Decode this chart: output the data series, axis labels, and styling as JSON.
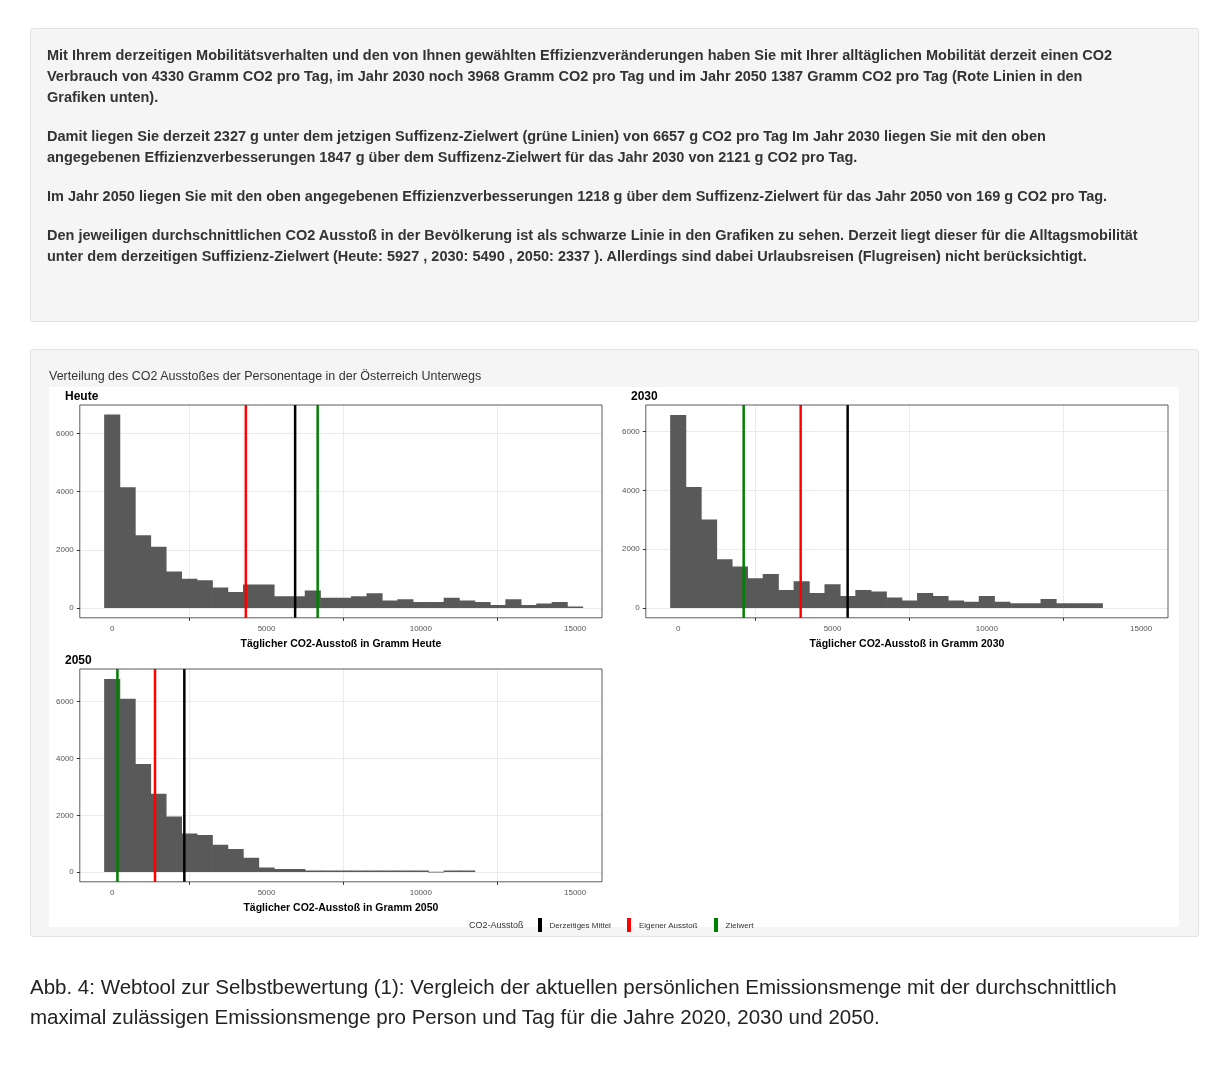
{
  "chart_data": [
    {
      "type": "other",
      "annotations": [
        "Mit Ihrem derzeitigen Mobilitätsverhalten und den von Ihnen gewählten Effizienzveränderungen haben Sie mit Ihrer alltäglichen Mobilität derzeit einen CO2 Verbrauch von 4330 Gramm CO2 pro Tag, im Jahr 2030 noch 3968 Gramm CO2 pro Tag und im Jahr 2050 1387 Gramm CO2 pro Tag (Rote Linien in den Grafiken unten).",
        "Damit liegen Sie derzeit 2327 g unter dem jetzigen Suffizenz-Zielwert (grüne Linien) von 6657 g CO2 pro Tag Im Jahr 2030 liegen Sie mit den oben angegebenen Effizienzverbesserungen 1847 g über dem Suffizenz-Zielwert für das Jahr 2030 von 2121 g CO2 pro Tag.",
        "Im Jahr 2050 liegen Sie mit den oben angegebenen Effizienzverbesserungen 1218 g über dem Suffizenz-Zielwert für das Jahr 2050 von 169 g CO2 pro Tag.",
        "Den jeweiligen durchschnittlichen CO2 Ausstoß in der Bevölkerung ist als schwarze Linie in den Grafiken zu sehen. Derzeit liegt dieser für die Alltagsmobilität unter dem derzeitigen Suffizienz-Zielwert (Heute: 5927 , 2030: 5490 , 2050: 2337 ). Allerdings sind dabei Urlaubsreisen (Flugreisen) nicht berücksichtigt."
      ]
    },
    {
      "type": "histogram",
      "title": "Heute",
      "xlabel": "Täglicher CO2-Ausstoß in Gramm Heute",
      "annotations": [
        "Verteilung des CO2 Ausstoßes der Personentage in der Österreich Unterwegs"
      ],
      "color": "#595959",
      "bins": [
        -250,
        250,
        750,
        1250,
        1750,
        2250,
        2750,
        3250,
        3750,
        4250,
        4750,
        5250,
        5750,
        6250,
        6750,
        7250,
        7750,
        8250,
        8750,
        9250,
        9750,
        10250,
        10750,
        11250,
        11750,
        12250,
        12750,
        13250,
        13750,
        14250,
        14750,
        15250
      ],
      "values": [
        6650,
        4150,
        2500,
        2100,
        1250,
        1000,
        950,
        700,
        550,
        800,
        800,
        400,
        400,
        600,
        350,
        350,
        400,
        500,
        250,
        300,
        200,
        200,
        350,
        250,
        200,
        100,
        300,
        100,
        150,
        200,
        50
      ],
      "xlim": [
        -1050,
        15870
      ],
      "xticks": [
        0,
        5000,
        10000,
        15000
      ],
      "ylim": [
        -330,
        6990
      ],
      "yticks": [
        0,
        2000,
        4000,
        6000
      ],
      "grid": true,
      "ref_lines": [
        {
          "axis": "x",
          "value": 4330,
          "color": "#ff0000"
        },
        {
          "axis": "x",
          "value": 5927,
          "color": "#000000"
        },
        {
          "axis": "x",
          "value": 6657,
          "color": "#008000"
        }
      ]
    },
    {
      "type": "histogram",
      "title": "2030",
      "xlabel": "Täglicher CO2-Ausstoß in Gramm 2030",
      "color": "#595959",
      "bins": [
        -250,
        250,
        750,
        1250,
        1750,
        2250,
        2750,
        3250,
        3750,
        4250,
        4750,
        5250,
        5750,
        6250,
        6750,
        7250,
        7750,
        8250,
        8750,
        9250,
        9750,
        10250,
        10750,
        11250,
        11750,
        12250,
        12750,
        13250,
        13750
      ],
      "values": [
        6550,
        4100,
        3000,
        1650,
        1400,
        1000,
        1150,
        600,
        900,
        500,
        800,
        400,
        600,
        550,
        350,
        250,
        500,
        400,
        250,
        200,
        400,
        200,
        150,
        150,
        300,
        150,
        150,
        150
      ],
      "xlim": [
        -1050,
        15870
      ],
      "xticks": [
        0,
        5000,
        10000,
        15000
      ],
      "ylim": [
        -330,
        6900
      ],
      "yticks": [
        0,
        2000,
        4000,
        6000
      ],
      "grid": true,
      "ref_lines": [
        {
          "axis": "x",
          "value": 2121,
          "color": "#008000"
        },
        {
          "axis": "x",
          "value": 3968,
          "color": "#ff0000"
        },
        {
          "axis": "x",
          "value": 5490,
          "color": "#000000"
        }
      ]
    },
    {
      "type": "histogram",
      "title": "2050",
      "xlabel": "Täglicher CO2-Ausstoß in Gramm 2050",
      "color": "#595959",
      "bins": [
        -250,
        250,
        750,
        1250,
        1750,
        2250,
        2750,
        3250,
        3750,
        4250,
        4750,
        5250,
        5750,
        6250,
        6750,
        7250,
        7750,
        8250,
        8750,
        9250,
        9750,
        10250,
        10750,
        11250,
        11750
      ],
      "values": [
        6800,
        6100,
        3800,
        2750,
        1950,
        1350,
        1300,
        950,
        800,
        500,
        150,
        100,
        100,
        50,
        50,
        50,
        50,
        50,
        50,
        50,
        50,
        0,
        50,
        50
      ],
      "xlim": [
        -1050,
        15870
      ],
      "xticks": [
        0,
        5000,
        10000,
        15000
      ],
      "ylim": [
        -340,
        7160
      ],
      "yticks": [
        0,
        2000,
        4000,
        6000
      ],
      "grid": true,
      "legend": "bottom",
      "legend_title": "CO2-Ausstoß",
      "ref_lines": [
        {
          "axis": "x",
          "value": 2337,
          "color": "#000000",
          "label": "Derzeitiges Mittel"
        },
        {
          "axis": "x",
          "value": 1387,
          "color": "#ff0000",
          "label": "Eigener Ausstoß"
        },
        {
          "axis": "x",
          "value": 169,
          "color": "#008000",
          "label": "Zielwert"
        }
      ]
    },
    {
      "type": "other",
      "annotations": [
        "Abb. 4: Webtool zur Selbstbewertung (1): Vergleich der aktuellen persönlichen Emissionsmenge mit der durchschnittlich maximal zulässigen Emissionsmenge pro Person und Tag für die Jahre 2020, 2030 und 2050."
      ]
    }
  ]
}
